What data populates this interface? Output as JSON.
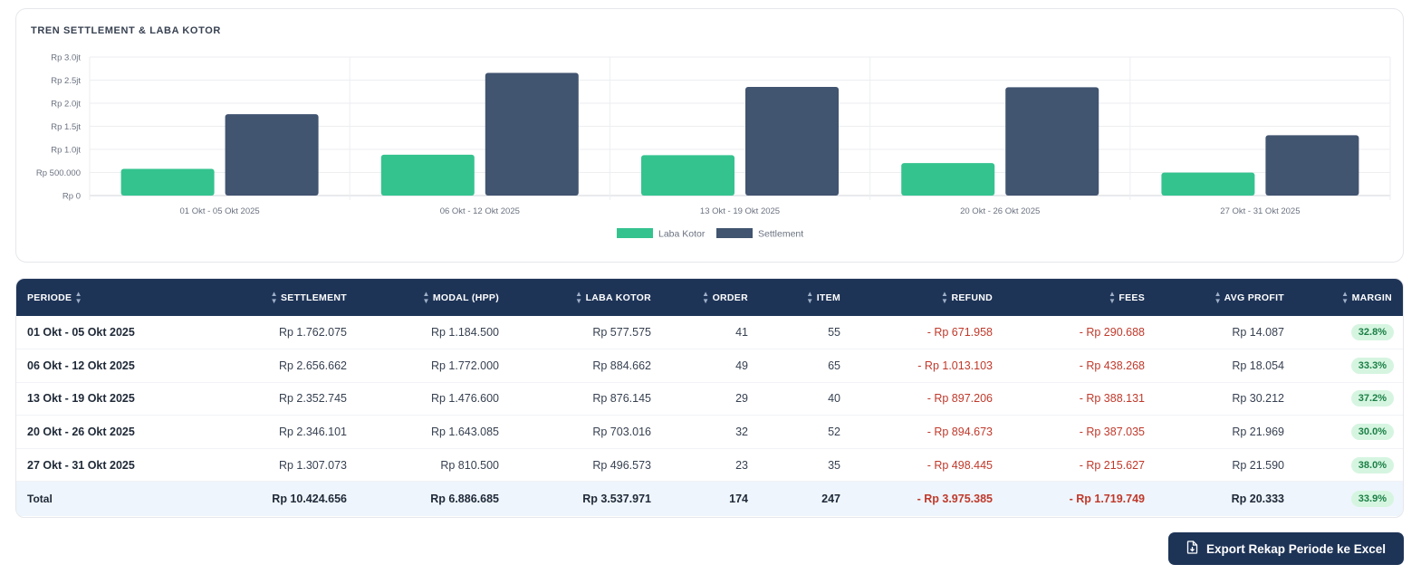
{
  "chart": {
    "title": "TREN SETTLEMENT & LABA KOTOR"
  },
  "chart_data": {
    "type": "bar",
    "title": "TREN SETTLEMENT & LABA KOTOR",
    "categories": [
      "01 Okt - 05 Okt 2025",
      "06 Okt - 12 Okt 2025",
      "13 Okt - 19 Okt 2025",
      "20 Okt - 26 Okt 2025",
      "27 Okt - 31 Okt 2025"
    ],
    "series": [
      {
        "name": "Laba Kotor",
        "color": "#34c38f",
        "values": [
          577575,
          884662,
          876145,
          703016,
          496573
        ]
      },
      {
        "name": "Settlement",
        "color": "#415470",
        "values": [
          1762075,
          2656662,
          2352745,
          2346101,
          1307073
        ]
      }
    ],
    "y_ticks": [
      {
        "value": 0,
        "label": "Rp 0"
      },
      {
        "value": 500000,
        "label": "Rp 500.000"
      },
      {
        "value": 1000000,
        "label": "Rp 1.0jt"
      },
      {
        "value": 1500000,
        "label": "Rp 1.5jt"
      },
      {
        "value": 2000000,
        "label": "Rp 2.0jt"
      },
      {
        "value": 2500000,
        "label": "Rp 2.5jt"
      },
      {
        "value": 3000000,
        "label": "Rp 3.0jt"
      }
    ],
    "ylim": [
      0,
      3000000
    ],
    "grid": true,
    "legend": "bottom"
  },
  "table": {
    "headers": {
      "periode": "PERIODE",
      "settlement": "SETTLEMENT",
      "modal": "MODAL (HPP)",
      "laba": "LABA KOTOR",
      "order": "ORDER",
      "item": "ITEM",
      "refund": "REFUND",
      "fees": "FEES",
      "avg": "AVG PROFIT",
      "margin": "MARGIN"
    },
    "rows": [
      {
        "periode": "01 Okt - 05 Okt 2025",
        "settlement": "Rp 1.762.075",
        "modal": "Rp 1.184.500",
        "laba": "Rp 577.575",
        "order": "41",
        "item": "55",
        "refund": "- Rp 671.958",
        "fees": "- Rp 290.688",
        "avg": "Rp 14.087",
        "margin": "32.8%"
      },
      {
        "periode": "06 Okt - 12 Okt 2025",
        "settlement": "Rp 2.656.662",
        "modal": "Rp 1.772.000",
        "laba": "Rp 884.662",
        "order": "49",
        "item": "65",
        "refund": "- Rp 1.013.103",
        "fees": "- Rp 438.268",
        "avg": "Rp 18.054",
        "margin": "33.3%"
      },
      {
        "periode": "13 Okt - 19 Okt 2025",
        "settlement": "Rp 2.352.745",
        "modal": "Rp 1.476.600",
        "laba": "Rp 876.145",
        "order": "29",
        "item": "40",
        "refund": "- Rp 897.206",
        "fees": "- Rp 388.131",
        "avg": "Rp 30.212",
        "margin": "37.2%"
      },
      {
        "periode": "20 Okt - 26 Okt 2025",
        "settlement": "Rp 2.346.101",
        "modal": "Rp 1.643.085",
        "laba": "Rp 703.016",
        "order": "32",
        "item": "52",
        "refund": "- Rp 894.673",
        "fees": "- Rp 387.035",
        "avg": "Rp 21.969",
        "margin": "30.0%"
      },
      {
        "periode": "27 Okt - 31 Okt 2025",
        "settlement": "Rp 1.307.073",
        "modal": "Rp 810.500",
        "laba": "Rp 496.573",
        "order": "23",
        "item": "35",
        "refund": "- Rp 498.445",
        "fees": "- Rp 215.627",
        "avg": "Rp 21.590",
        "margin": "38.0%"
      }
    ],
    "total": {
      "periode": "Total",
      "settlement": "Rp 10.424.656",
      "modal": "Rp 6.886.685",
      "laba": "Rp 3.537.971",
      "order": "174",
      "item": "247",
      "refund": "- Rp 3.975.385",
      "fees": "- Rp 1.719.749",
      "avg": "Rp 20.333",
      "margin": "33.9%"
    }
  },
  "export": {
    "label": "Export Rekap Periode ke Excel",
    "icon": "file-export-icon"
  }
}
